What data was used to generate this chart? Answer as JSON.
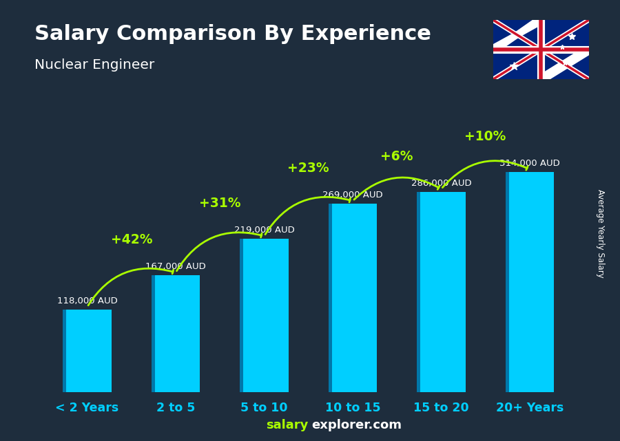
{
  "title": "Salary Comparison By Experience",
  "subtitle": "Nuclear Engineer",
  "categories": [
    "< 2 Years",
    "2 to 5",
    "5 to 10",
    "10 to 15",
    "15 to 20",
    "20+ Years"
  ],
  "values": [
    118000,
    167000,
    219000,
    269000,
    286000,
    314000
  ],
  "salary_labels": [
    "118,000 AUD",
    "167,000 AUD",
    "219,000 AUD",
    "269,000 AUD",
    "286,000 AUD",
    "314,000 AUD"
  ],
  "pct_changes": [
    "+42%",
    "+31%",
    "+23%",
    "+6%",
    "+10%"
  ],
  "bar_color_top": "#00cfff",
  "bar_color_bottom": "#0077aa",
  "bg_color": "#1e2d3d",
  "text_color_white": "#ffffff",
  "text_color_cyan": "#00cfff",
  "text_color_green": "#aaff00",
  "ylabel": "Average Yearly Salary",
  "footer_salary": "salary",
  "footer_explorer": "explorer.com"
}
